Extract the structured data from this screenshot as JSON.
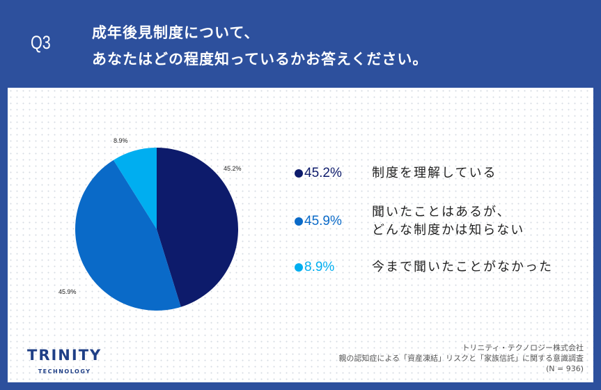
{
  "header": {
    "question_number": "Q3",
    "title_line1": "成年後見制度について、",
    "title_line2": "あなたはどの程度知っているかお答えください。"
  },
  "colors": {
    "background": "#2d509d",
    "slice_1": "#0d1b6b",
    "slice_2": "#0a6ac8",
    "slice_3": "#00aef0"
  },
  "legend": [
    {
      "pct": "45.2%",
      "label_line1": "制度を理解している",
      "label_line2": ""
    },
    {
      "pct": "45.9%",
      "label_line1": "聞いたことはあるが、",
      "label_line2": "どんな制度かは知らない"
    },
    {
      "pct": "8.9%",
      "label_line1": "今まで聞いたことがなかった",
      "label_line2": ""
    }
  ],
  "pie_labels": [
    "45.2%",
    "45.9%",
    "8.9%"
  ],
  "logo": {
    "main": "TRINITY",
    "sub": "TECHNOLOGY"
  },
  "source": {
    "company": "トリニティ・テクノロジー株式会社",
    "survey": "親の認知症による「資産凍結」リスクと「家族信託」に関する意識調査",
    "sample": "(N = 936)"
  },
  "chart_data": {
    "type": "pie",
    "title": "成年後見制度について、あなたはどの程度知っているかお答えください。",
    "categories": [
      "制度を理解している",
      "聞いたことはあるが、どんな制度かは知らない",
      "今まで聞いたことがなかった"
    ],
    "values": [
      45.2,
      45.9,
      8.9
    ],
    "unit": "%",
    "colors": [
      "#0d1b6b",
      "#0a6ac8",
      "#00aef0"
    ],
    "start_angle": "12 o'clock, clockwise",
    "legend_position": "right",
    "n": 936
  }
}
